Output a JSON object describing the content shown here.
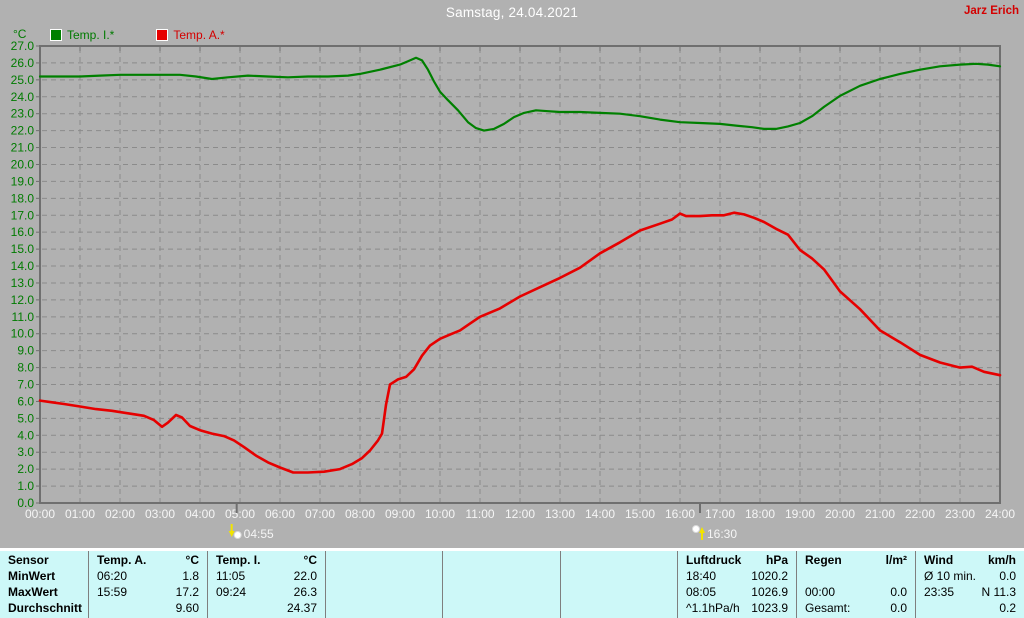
{
  "header": {
    "title": "Samstag, 24.04.2021",
    "author": "Jarz Erich"
  },
  "colors": {
    "background": "#b1b1b1",
    "grid": "#8b8b8b",
    "frame": "#6f6f6f",
    "x_label": "#f5f5f5",
    "y_label": "#007b00",
    "title": "#ffffff",
    "author": "#d40000",
    "table_background": "#cdf8f8",
    "table_divider": "#7f7f7f"
  },
  "chart_data": {
    "type": "line",
    "title": "Samstag, 24.04.2021",
    "xlabel": "",
    "ylabel": "°C",
    "ylim": [
      0,
      27
    ],
    "y_tick_step": 1.0,
    "xlim_hours": [
      0,
      24
    ],
    "grid": "dashed",
    "legend_position": "top-left",
    "x_ticks": [
      "00:00",
      "01:00",
      "02:00",
      "03:00",
      "04:00",
      "05:00",
      "06:00",
      "07:00",
      "08:00",
      "09:00",
      "10:00",
      "11:00",
      "12:00",
      "13:00",
      "14:00",
      "15:00",
      "16:00",
      "17:00",
      "18:00",
      "19:00",
      "20:00",
      "21:00",
      "22:00",
      "23:00",
      "24:00"
    ],
    "series": [
      {
        "name": "Temp. I.*",
        "color": "#008000",
        "width": 2.2,
        "points": [
          [
            0,
            25.2
          ],
          [
            0.5,
            25.2
          ],
          [
            1,
            25.2
          ],
          [
            1.5,
            25.25
          ],
          [
            2,
            25.3
          ],
          [
            2.5,
            25.3
          ],
          [
            3,
            25.3
          ],
          [
            3.5,
            25.3
          ],
          [
            3.9,
            25.2
          ],
          [
            4.3,
            25.05
          ],
          [
            4.7,
            25.15
          ],
          [
            5.2,
            25.25
          ],
          [
            5.7,
            25.2
          ],
          [
            6.2,
            25.15
          ],
          [
            6.7,
            25.2
          ],
          [
            7.2,
            25.2
          ],
          [
            7.7,
            25.25
          ],
          [
            8,
            25.35
          ],
          [
            8.5,
            25.6
          ],
          [
            9,
            25.9
          ],
          [
            9.2,
            26.1
          ],
          [
            9.4,
            26.3
          ],
          [
            9.55,
            26.15
          ],
          [
            9.7,
            25.6
          ],
          [
            9.85,
            24.9
          ],
          [
            10,
            24.3
          ],
          [
            10.2,
            23.8
          ],
          [
            10.45,
            23.2
          ],
          [
            10.7,
            22.5
          ],
          [
            10.9,
            22.15
          ],
          [
            11.1,
            22.0
          ],
          [
            11.35,
            22.1
          ],
          [
            11.6,
            22.4
          ],
          [
            11.85,
            22.8
          ],
          [
            12.1,
            23.05
          ],
          [
            12.4,
            23.2
          ],
          [
            12.7,
            23.15
          ],
          [
            13,
            23.1
          ],
          [
            13.5,
            23.1
          ],
          [
            14,
            23.05
          ],
          [
            14.5,
            23.0
          ],
          [
            15,
            22.85
          ],
          [
            15.5,
            22.65
          ],
          [
            16,
            22.5
          ],
          [
            16.5,
            22.45
          ],
          [
            17,
            22.4
          ],
          [
            17.4,
            22.3
          ],
          [
            17.8,
            22.2
          ],
          [
            18.1,
            22.1
          ],
          [
            18.4,
            22.1
          ],
          [
            18.7,
            22.25
          ],
          [
            19,
            22.45
          ],
          [
            19.3,
            22.85
          ],
          [
            19.6,
            23.4
          ],
          [
            20,
            24.05
          ],
          [
            20.5,
            24.65
          ],
          [
            21,
            25.05
          ],
          [
            21.5,
            25.35
          ],
          [
            22,
            25.6
          ],
          [
            22.5,
            25.8
          ],
          [
            23,
            25.9
          ],
          [
            23.4,
            25.95
          ],
          [
            23.7,
            25.9
          ],
          [
            24,
            25.8
          ]
        ]
      },
      {
        "name": "Temp. A.*",
        "color": "#e60000",
        "width": 2.6,
        "points": [
          [
            0,
            6.05
          ],
          [
            0.3,
            5.95
          ],
          [
            0.6,
            5.85
          ],
          [
            1,
            5.7
          ],
          [
            1.4,
            5.55
          ],
          [
            1.8,
            5.45
          ],
          [
            2.2,
            5.3
          ],
          [
            2.6,
            5.15
          ],
          [
            2.85,
            4.9
          ],
          [
            3.05,
            4.5
          ],
          [
            3.2,
            4.75
          ],
          [
            3.4,
            5.2
          ],
          [
            3.55,
            5.05
          ],
          [
            3.75,
            4.55
          ],
          [
            4,
            4.3
          ],
          [
            4.3,
            4.1
          ],
          [
            4.6,
            3.95
          ],
          [
            4.85,
            3.7
          ],
          [
            5.1,
            3.3
          ],
          [
            5.4,
            2.8
          ],
          [
            5.7,
            2.4
          ],
          [
            6,
            2.1
          ],
          [
            6.33,
            1.8
          ],
          [
            6.7,
            1.8
          ],
          [
            7.1,
            1.85
          ],
          [
            7.5,
            2.0
          ],
          [
            7.8,
            2.3
          ],
          [
            8.05,
            2.65
          ],
          [
            8.25,
            3.1
          ],
          [
            8.45,
            3.7
          ],
          [
            8.55,
            4.1
          ],
          [
            8.65,
            5.8
          ],
          [
            8.75,
            7.0
          ],
          [
            8.95,
            7.3
          ],
          [
            9.15,
            7.45
          ],
          [
            9.35,
            7.9
          ],
          [
            9.55,
            8.7
          ],
          [
            9.75,
            9.3
          ],
          [
            10,
            9.7
          ],
          [
            10.25,
            9.95
          ],
          [
            10.5,
            10.2
          ],
          [
            10.75,
            10.6
          ],
          [
            11,
            11.0
          ],
          [
            11.5,
            11.5
          ],
          [
            12,
            12.2
          ],
          [
            12.5,
            12.75
          ],
          [
            13,
            13.3
          ],
          [
            13.5,
            13.9
          ],
          [
            14,
            14.75
          ],
          [
            14.5,
            15.4
          ],
          [
            15,
            16.1
          ],
          [
            15.5,
            16.5
          ],
          [
            15.8,
            16.75
          ],
          [
            16,
            17.1
          ],
          [
            16.15,
            16.95
          ],
          [
            16.5,
            16.95
          ],
          [
            16.8,
            17.0
          ],
          [
            17.1,
            17.0
          ],
          [
            17.35,
            17.15
          ],
          [
            17.6,
            17.05
          ],
          [
            17.85,
            16.85
          ],
          [
            18.1,
            16.6
          ],
          [
            18.4,
            16.2
          ],
          [
            18.7,
            15.85
          ],
          [
            19,
            14.95
          ],
          [
            19.3,
            14.45
          ],
          [
            19.6,
            13.8
          ],
          [
            20,
            12.5
          ],
          [
            20.5,
            11.45
          ],
          [
            21,
            10.2
          ],
          [
            21.5,
            9.5
          ],
          [
            22,
            8.75
          ],
          [
            22.5,
            8.3
          ],
          [
            23,
            8.0
          ],
          [
            23.3,
            8.05
          ],
          [
            23.6,
            7.75
          ],
          [
            24,
            7.55
          ]
        ]
      }
    ],
    "annotations": [
      {
        "hour": 4.917,
        "label": "04:55",
        "icon": "sunrise-icon"
      },
      {
        "hour": 16.5,
        "label": "16:30",
        "icon": "sunset-icon"
      }
    ]
  },
  "table": {
    "row_labels": [
      "Sensor",
      "MinWert",
      "MaxWert",
      "Durchschnitt"
    ],
    "columns": [
      {
        "header": "Temp. A.",
        "unit": "°C",
        "rows": [
          [
            "06:20",
            "1.8"
          ],
          [
            "15:59",
            "17.2"
          ],
          [
            "",
            "9.60"
          ]
        ]
      },
      {
        "header": "Temp. I.",
        "unit": "°C",
        "rows": [
          [
            "11:05",
            "22.0"
          ],
          [
            "09:24",
            "26.3"
          ],
          [
            "",
            "24.37"
          ]
        ]
      },
      {
        "header": "",
        "unit": "",
        "rows": [
          [
            "",
            ""
          ],
          [
            "",
            ""
          ],
          [
            "",
            ""
          ]
        ]
      },
      {
        "header": "",
        "unit": "",
        "rows": [
          [
            "",
            ""
          ],
          [
            "",
            ""
          ],
          [
            "",
            ""
          ]
        ]
      },
      {
        "header": "",
        "unit": "",
        "rows": [
          [
            "",
            ""
          ],
          [
            "",
            ""
          ],
          [
            "",
            ""
          ]
        ]
      },
      {
        "header": "Luftdruck",
        "unit": "hPa",
        "rows": [
          [
            "18:40",
            "1020.2"
          ],
          [
            "08:05",
            "1026.9"
          ],
          [
            "^1.1hPa/h",
            "1023.9"
          ]
        ]
      },
      {
        "header": "Regen",
        "unit": "l/m²",
        "rows": [
          [
            "",
            ""
          ],
          [
            "00:00",
            "0.0"
          ],
          [
            "Gesamt:",
            "0.0"
          ]
        ]
      },
      {
        "header": "Wind",
        "unit": "km/h",
        "rows": [
          [
            "Ø 10 min.",
            "0.0"
          ],
          [
            "23:35",
            "N 11.3"
          ],
          [
            "",
            "0.2"
          ]
        ]
      }
    ]
  }
}
